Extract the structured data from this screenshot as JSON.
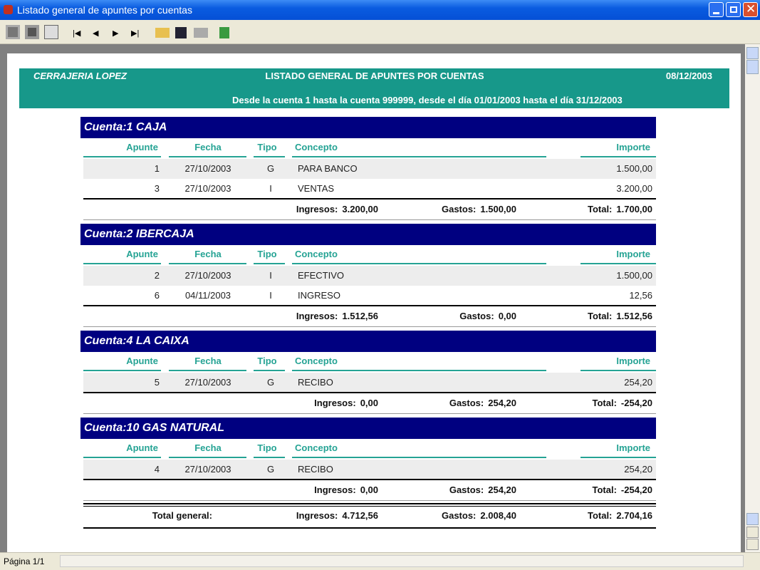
{
  "window": {
    "title": "Listado general de apuntes por cuentas"
  },
  "report": {
    "company": "CERRAJERIA LOPEZ",
    "title": "LISTADO GENERAL DE APUNTES POR CUENTAS",
    "date": "08/12/2003",
    "subtitle": "Desde la cuenta 1 hasta la cuenta 999999, desde el día 01/01/2003 hasta el día 31/12/2003",
    "columns": [
      "Apunte",
      "Fecha",
      "Tipo",
      "Concepto",
      "Importe"
    ],
    "labels": {
      "ingresos": "Ingresos:",
      "gastos": "Gastos:",
      "total": "Total:"
    },
    "accounts": [
      {
        "header": "Cuenta:1 CAJA",
        "rows": [
          [
            "1",
            "27/10/2003",
            "G",
            "PARA BANCO",
            "1.500,00"
          ],
          [
            "3",
            "27/10/2003",
            "I",
            "VENTAS",
            "3.200,00"
          ]
        ],
        "totals": {
          "ingresos": "3.200,00",
          "gastos": "1.500,00",
          "total": "1.700,00"
        }
      },
      {
        "header": "Cuenta:2 IBERCAJA",
        "rows": [
          [
            "2",
            "27/10/2003",
            "I",
            "EFECTIVO",
            "1.500,00"
          ],
          [
            "6",
            "04/11/2003",
            "I",
            "INGRESO",
            "12,56"
          ]
        ],
        "totals": {
          "ingresos": "1.512,56",
          "gastos": "0,00",
          "total": "1.512,56"
        }
      },
      {
        "header": "Cuenta:4 LA CAIXA",
        "rows": [
          [
            "5",
            "27/10/2003",
            "G",
            "RECIBO",
            "254,20"
          ]
        ],
        "totals": {
          "ingresos": "0,00",
          "gastos": "254,20",
          "total": "-254,20"
        }
      },
      {
        "header": "Cuenta:10 GAS NATURAL",
        "rows": [
          [
            "4",
            "27/10/2003",
            "G",
            "RECIBO",
            "254,20"
          ]
        ],
        "totals": {
          "ingresos": "0,00",
          "gastos": "254,20",
          "total": "-254,20"
        }
      }
    ],
    "grand_total": {
      "label": "Total general:",
      "ingresos": "4.712,56",
      "gastos": "2.008,40",
      "total": "2.704,16"
    }
  },
  "status": {
    "page": "Página 1/1"
  }
}
